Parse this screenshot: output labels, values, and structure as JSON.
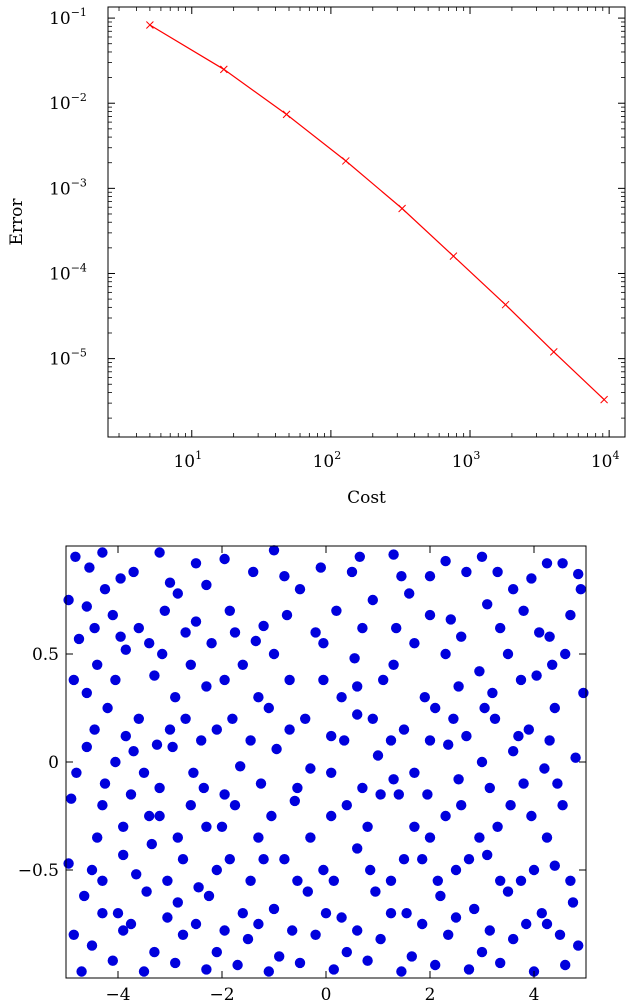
{
  "chart_data": [
    {
      "type": "line",
      "xlabel": "Cost",
      "ylabel": "Error",
      "xscale": "log",
      "yscale": "log",
      "xlim": [
        2.5,
        13000
      ],
      "ylim": [
        1.2e-06,
        0.135
      ],
      "xticks": [
        {
          "value": 10,
          "base": "10",
          "exp": "1"
        },
        {
          "value": 100,
          "base": "10",
          "exp": "2"
        },
        {
          "value": 1000,
          "base": "10",
          "exp": "3"
        },
        {
          "value": 10000,
          "base": "10",
          "exp": "4"
        }
      ],
      "yticks": [
        {
          "value": 0.1,
          "base": "10",
          "exp": "−1"
        },
        {
          "value": 0.01,
          "base": "10",
          "exp": "−2"
        },
        {
          "value": 0.001,
          "base": "10",
          "exp": "−3"
        },
        {
          "value": 0.0001,
          "base": "10",
          "exp": "−4"
        },
        {
          "value": 1e-05,
          "base": "10",
          "exp": "−5"
        }
      ],
      "marker": "x",
      "color": "#ff0000",
      "series": [
        {
          "x": [
            5,
            17,
            48,
            128,
            325,
            760,
            1800,
            4000,
            9200
          ],
          "y": [
            0.083,
            0.025,
            0.0074,
            0.0021,
            0.00058,
            0.00016,
            4.3e-05,
            1.2e-05,
            3.3e-06
          ]
        }
      ]
    },
    {
      "type": "scatter",
      "xlim": [
        -5,
        5
      ],
      "ylim": [
        -1,
        1
      ],
      "xticks": [
        "−4",
        "−2",
        "0",
        "2",
        "4"
      ],
      "yticks": [
        "0.5",
        "0",
        "−0.5"
      ],
      "xtick_values": [
        -4,
        -2,
        0,
        2,
        4
      ],
      "ytick_values": [
        0.5,
        0,
        -0.5
      ],
      "color": "#0000dd",
      "points": [
        [
          -4.82,
          0.95
        ],
        [
          -4.55,
          0.9
        ],
        [
          -4.3,
          0.97
        ],
        [
          -3.95,
          0.85
        ],
        [
          -3.2,
          0.97
        ],
        [
          -2.85,
          0.78
        ],
        [
          -2.5,
          0.92
        ],
        [
          -1.95,
          0.94
        ],
        [
          -1.0,
          0.98
        ],
        [
          0.5,
          0.88
        ],
        [
          1.3,
          0.96
        ],
        [
          2.0,
          0.86
        ],
        [
          2.7,
          0.88
        ],
        [
          3.3,
          0.88
        ],
        [
          3.95,
          0.85
        ],
        [
          4.55,
          0.92
        ],
        [
          4.85,
          0.87
        ],
        [
          -4.95,
          0.75
        ],
        [
          -4.6,
          0.72
        ],
        [
          -4.1,
          0.68
        ],
        [
          -3.6,
          0.62
        ],
        [
          -3.1,
          0.7
        ],
        [
          -2.7,
          0.6
        ],
        [
          -2.2,
          0.55
        ],
        [
          -1.75,
          0.6
        ],
        [
          -1.2,
          0.63
        ],
        [
          -0.5,
          0.8
        ],
        [
          0.2,
          0.7
        ],
        [
          0.9,
          0.75
        ],
        [
          1.6,
          0.78
        ],
        [
          2.4,
          0.66
        ],
        [
          3.1,
          0.73
        ],
        [
          3.8,
          0.7
        ],
        [
          4.3,
          0.58
        ],
        [
          4.9,
          0.8
        ],
        [
          -4.75,
          0.57
        ],
        [
          -4.4,
          0.45
        ],
        [
          -3.85,
          0.52
        ],
        [
          -3.3,
          0.4
        ],
        [
          -2.9,
          0.3
        ],
        [
          -2.3,
          0.35
        ],
        [
          -1.6,
          0.45
        ],
        [
          -1.0,
          0.5
        ],
        [
          -0.2,
          0.6
        ],
        [
          0.55,
          0.48
        ],
        [
          1.1,
          0.38
        ],
        [
          1.7,
          0.55
        ],
        [
          2.3,
          0.5
        ],
        [
          2.95,
          0.42
        ],
        [
          3.5,
          0.5
        ],
        [
          4.05,
          0.4
        ],
        [
          4.6,
          0.5
        ],
        [
          -4.85,
          0.38
        ],
        [
          -4.2,
          0.25
        ],
        [
          -3.6,
          0.2
        ],
        [
          -3.0,
          0.15
        ],
        [
          -2.4,
          0.1
        ],
        [
          -1.8,
          0.2
        ],
        [
          -1.1,
          0.25
        ],
        [
          -0.4,
          0.2
        ],
        [
          0.3,
          0.3
        ],
        [
          0.9,
          0.2
        ],
        [
          1.5,
          0.15
        ],
        [
          2.1,
          0.25
        ],
        [
          2.7,
          0.12
        ],
        [
          3.25,
          0.2
        ],
        [
          3.9,
          0.15
        ],
        [
          4.4,
          0.25
        ],
        [
          4.95,
          0.32
        ],
        [
          -4.6,
          0.07
        ],
        [
          -4.05,
          0.0
        ],
        [
          -3.5,
          -0.05
        ],
        [
          -2.95,
          0.07
        ],
        [
          -2.35,
          -0.12
        ],
        [
          -1.65,
          -0.02
        ],
        [
          -0.95,
          0.06
        ],
        [
          -0.3,
          -0.03
        ],
        [
          0.35,
          0.1
        ],
        [
          1.0,
          0.03
        ],
        [
          1.7,
          -0.05
        ],
        [
          2.35,
          0.08
        ],
        [
          3.0,
          0.0
        ],
        [
          3.6,
          0.05
        ],
        [
          4.2,
          -0.03
        ],
        [
          4.8,
          0.02
        ],
        [
          -4.9,
          -0.17
        ],
        [
          -4.3,
          -0.2
        ],
        [
          -3.75,
          -0.15
        ],
        [
          -3.2,
          -0.25
        ],
        [
          -2.6,
          -0.2
        ],
        [
          -2.0,
          -0.3
        ],
        [
          -1.3,
          -0.35
        ],
        [
          -0.6,
          -0.18
        ],
        [
          0.1,
          -0.25
        ],
        [
          0.8,
          -0.3
        ],
        [
          1.4,
          -0.15
        ],
        [
          2.0,
          -0.35
        ],
        [
          2.6,
          -0.2
        ],
        [
          3.3,
          -0.3
        ],
        [
          3.95,
          -0.25
        ],
        [
          4.55,
          -0.2
        ],
        [
          -4.5,
          -0.5
        ],
        [
          -3.9,
          -0.43
        ],
        [
          -3.35,
          -0.38
        ],
        [
          -2.75,
          -0.45
        ],
        [
          -2.1,
          -0.5
        ],
        [
          -1.45,
          -0.55
        ],
        [
          -0.8,
          -0.45
        ],
        [
          -0.05,
          -0.5
        ],
        [
          0.6,
          -0.4
        ],
        [
          1.25,
          -0.55
        ],
        [
          1.85,
          -0.45
        ],
        [
          2.5,
          -0.5
        ],
        [
          3.1,
          -0.43
        ],
        [
          3.75,
          -0.55
        ],
        [
          4.4,
          -0.48
        ],
        [
          -4.95,
          -0.47
        ],
        [
          -4.65,
          -0.62
        ],
        [
          -4.0,
          -0.7
        ],
        [
          -3.45,
          -0.6
        ],
        [
          -2.85,
          -0.65
        ],
        [
          -2.25,
          -0.62
        ],
        [
          -1.6,
          -0.7
        ],
        [
          -1.0,
          -0.68
        ],
        [
          -0.35,
          -0.6
        ],
        [
          0.3,
          -0.72
        ],
        [
          0.95,
          -0.6
        ],
        [
          1.55,
          -0.7
        ],
        [
          2.2,
          -0.62
        ],
        [
          2.85,
          -0.68
        ],
        [
          3.5,
          -0.6
        ],
        [
          4.15,
          -0.7
        ],
        [
          4.75,
          -0.65
        ],
        [
          -4.85,
          -0.8
        ],
        [
          -4.5,
          -0.85
        ],
        [
          -3.9,
          -0.78
        ],
        [
          -3.3,
          -0.88
        ],
        [
          -2.75,
          -0.8
        ],
        [
          -2.1,
          -0.88
        ],
        [
          -1.5,
          -0.82
        ],
        [
          -0.9,
          -0.9
        ],
        [
          -0.2,
          -0.8
        ],
        [
          0.4,
          -0.88
        ],
        [
          1.05,
          -0.82
        ],
        [
          1.65,
          -0.9
        ],
        [
          2.35,
          -0.8
        ],
        [
          3.0,
          -0.88
        ],
        [
          3.6,
          -0.82
        ],
        [
          4.25,
          -0.75
        ],
        [
          4.85,
          -0.85
        ],
        [
          -4.7,
          -0.97
        ],
        [
          -4.1,
          -0.92
        ],
        [
          -3.5,
          -0.97
        ],
        [
          -2.9,
          -0.93
        ],
        [
          -2.3,
          -0.96
        ],
        [
          -1.7,
          -0.94
        ],
        [
          -1.1,
          -0.97
        ],
        [
          -0.5,
          -0.93
        ],
        [
          0.15,
          -0.96
        ],
        [
          0.8,
          -0.92
        ],
        [
          1.45,
          -0.97
        ],
        [
          2.1,
          -0.94
        ],
        [
          2.75,
          -0.96
        ],
        [
          3.35,
          -0.93
        ],
        [
          4.0,
          -0.97
        ],
        [
          4.6,
          -0.94
        ],
        [
          -4.25,
          0.8
        ],
        [
          -3.7,
          0.88
        ],
        [
          -3.0,
          0.83
        ],
        [
          -2.3,
          0.82
        ],
        [
          -1.4,
          0.88
        ],
        [
          -0.8,
          0.86
        ],
        [
          -0.1,
          0.9
        ],
        [
          0.65,
          0.95
        ],
        [
          1.45,
          0.86
        ],
        [
          2.3,
          0.93
        ],
        [
          3.0,
          0.95
        ],
        [
          3.6,
          0.8
        ],
        [
          4.25,
          0.92
        ],
        [
          -4.45,
          0.62
        ],
        [
          -3.95,
          0.58
        ],
        [
          -3.4,
          0.55
        ],
        [
          -2.5,
          0.65
        ],
        [
          -1.85,
          0.7
        ],
        [
          -1.35,
          0.56
        ],
        [
          -0.75,
          0.68
        ],
        [
          -0.05,
          0.55
        ],
        [
          0.7,
          0.62
        ],
        [
          1.35,
          0.62
        ],
        [
          2.0,
          0.68
        ],
        [
          2.6,
          0.58
        ],
        [
          3.35,
          0.62
        ],
        [
          4.1,
          0.6
        ],
        [
          4.7,
          0.68
        ],
        [
          -4.6,
          0.32
        ],
        [
          -4.05,
          0.38
        ],
        [
          -3.15,
          0.5
        ],
        [
          -2.6,
          0.45
        ],
        [
          -1.95,
          0.38
        ],
        [
          -1.3,
          0.3
        ],
        [
          -0.7,
          0.38
        ],
        [
          -0.05,
          0.38
        ],
        [
          0.6,
          0.35
        ],
        [
          1.3,
          0.45
        ],
        [
          1.9,
          0.3
        ],
        [
          2.55,
          0.35
        ],
        [
          3.2,
          0.32
        ],
        [
          3.75,
          0.38
        ],
        [
          4.35,
          0.45
        ],
        [
          -4.45,
          0.15
        ],
        [
          -3.85,
          0.12
        ],
        [
          -3.25,
          0.08
        ],
        [
          -2.7,
          0.2
        ],
        [
          -2.1,
          0.15
        ],
        [
          -1.45,
          0.1
        ],
        [
          -0.7,
          0.15
        ],
        [
          0.1,
          0.12
        ],
        [
          0.6,
          0.22
        ],
        [
          1.25,
          0.1
        ],
        [
          2.0,
          0.1
        ],
        [
          2.45,
          0.2
        ],
        [
          3.05,
          0.25
        ],
        [
          3.7,
          0.12
        ],
        [
          4.3,
          0.1
        ],
        [
          -4.8,
          -0.05
        ],
        [
          -4.25,
          -0.1
        ],
        [
          -3.7,
          0.05
        ],
        [
          -3.2,
          -0.12
        ],
        [
          -2.55,
          -0.05
        ],
        [
          -1.95,
          -0.15
        ],
        [
          -1.25,
          -0.1
        ],
        [
          -0.55,
          -0.12
        ],
        [
          0.1,
          -0.05
        ],
        [
          0.7,
          -0.12
        ],
        [
          1.3,
          -0.08
        ],
        [
          1.95,
          -0.15
        ],
        [
          2.55,
          -0.08
        ],
        [
          3.15,
          -0.12
        ],
        [
          3.8,
          -0.1
        ],
        [
          4.45,
          -0.1
        ],
        [
          -4.4,
          -0.35
        ],
        [
          -3.9,
          -0.3
        ],
        [
          -3.4,
          -0.25
        ],
        [
          -2.85,
          -0.35
        ],
        [
          -2.3,
          -0.3
        ],
        [
          -1.75,
          -0.2
        ],
        [
          -1.05,
          -0.25
        ],
        [
          -0.3,
          -0.35
        ],
        [
          0.4,
          -0.2
        ],
        [
          1.05,
          -0.15
        ],
        [
          1.7,
          -0.3
        ],
        [
          2.3,
          -0.25
        ],
        [
          2.95,
          -0.35
        ],
        [
          3.55,
          -0.2
        ],
        [
          4.25,
          -0.35
        ],
        [
          -4.3,
          -0.55
        ],
        [
          -3.65,
          -0.52
        ],
        [
          -3.05,
          -0.55
        ],
        [
          -2.45,
          -0.58
        ],
        [
          -1.85,
          -0.45
        ],
        [
          -1.2,
          -0.45
        ],
        [
          -0.55,
          -0.55
        ],
        [
          0.15,
          -0.55
        ],
        [
          0.85,
          -0.5
        ],
        [
          1.5,
          -0.45
        ],
        [
          2.15,
          -0.55
        ],
        [
          2.75,
          -0.45
        ],
        [
          3.35,
          -0.55
        ],
        [
          4.0,
          -0.5
        ],
        [
          4.7,
          -0.55
        ],
        [
          -4.3,
          -0.7
        ],
        [
          -3.75,
          -0.75
        ],
        [
          -3.05,
          -0.72
        ],
        [
          -2.5,
          -0.75
        ],
        [
          -1.95,
          -0.78
        ],
        [
          -1.3,
          -0.75
        ],
        [
          -0.65,
          -0.78
        ],
        [
          0.0,
          -0.7
        ],
        [
          0.6,
          -0.78
        ],
        [
          1.25,
          -0.7
        ],
        [
          1.85,
          -0.75
        ],
        [
          2.5,
          -0.72
        ],
        [
          3.15,
          -0.78
        ],
        [
          3.85,
          -0.75
        ],
        [
          4.5,
          -0.8
        ]
      ]
    }
  ]
}
